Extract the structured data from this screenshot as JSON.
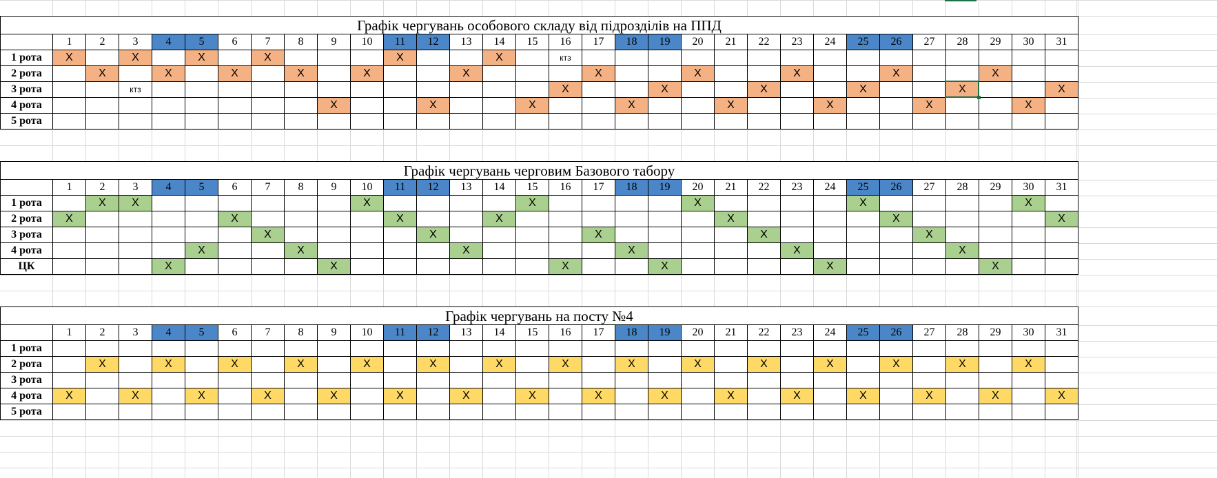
{
  "colors": {
    "weekend_header": "#4a86c8",
    "mark_ppd": "#f4b183",
    "mark_base": "#a9d08e",
    "mark_post": "#ffd966",
    "selection": "#1e7145"
  },
  "days": [
    "1",
    "2",
    "3",
    "4",
    "5",
    "6",
    "7",
    "8",
    "9",
    "10",
    "11",
    "12",
    "13",
    "14",
    "15",
    "16",
    "17",
    "18",
    "19",
    "20",
    "21",
    "22",
    "23",
    "24",
    "25",
    "26",
    "27",
    "28",
    "29",
    "30",
    "31"
  ],
  "weekend_days": [
    4,
    5,
    11,
    12,
    18,
    19,
    25,
    26
  ],
  "mark_text": "Х",
  "schedules": [
    {
      "title": "Графік чергувань особового складу від підрозділів на ППД",
      "mark_color": "#f4b183",
      "rows": [
        {
          "label": "1 рота",
          "marks": [
            1,
            3,
            5,
            7,
            11,
            14
          ],
          "notes": {
            "16": "ктз"
          }
        },
        {
          "label": "2 рота",
          "marks": [
            2,
            4,
            6,
            8,
            10,
            13,
            17,
            20,
            23,
            26,
            29
          ],
          "notes": {}
        },
        {
          "label": "3 рота",
          "marks": [
            16,
            19,
            22,
            25,
            28,
            31
          ],
          "notes": {
            "3": "ктз"
          }
        },
        {
          "label": "4 рота",
          "marks": [
            9,
            12,
            15,
            18,
            21,
            24,
            27,
            30
          ],
          "notes": {}
        },
        {
          "label": "5 рота",
          "marks": [],
          "notes": {}
        }
      ]
    },
    {
      "title": "Графік чергувань черговим Базового табору",
      "mark_color": "#a9d08e",
      "rows": [
        {
          "label": "1 рота",
          "marks": [
            2,
            3,
            10,
            15,
            20,
            25,
            30
          ],
          "notes": {}
        },
        {
          "label": "2 рота",
          "marks": [
            1,
            6,
            11,
            14,
            21,
            26,
            31
          ],
          "notes": {}
        },
        {
          "label": "3 рота",
          "marks": [
            7,
            12,
            17,
            22,
            27
          ],
          "notes": {}
        },
        {
          "label": "4 рота",
          "marks": [
            5,
            8,
            13,
            18,
            23,
            28
          ],
          "notes": {}
        },
        {
          "label": "ЦК",
          "marks": [
            4,
            9,
            16,
            19,
            24,
            29
          ],
          "notes": {}
        }
      ]
    },
    {
      "title": "Графік чергувань на посту №4",
      "mark_color": "#ffd966",
      "rows": [
        {
          "label": "1 рота",
          "marks": [],
          "notes": {}
        },
        {
          "label": "2 рота",
          "marks": [
            2,
            4,
            6,
            8,
            10,
            12,
            14,
            16,
            18,
            20,
            22,
            24,
            26,
            28,
            30
          ],
          "notes": {}
        },
        {
          "label": "3 рота",
          "marks": [],
          "notes": {}
        },
        {
          "label": "4 рота",
          "marks": [
            1,
            3,
            5,
            7,
            9,
            11,
            13,
            15,
            17,
            19,
            21,
            23,
            25,
            27,
            29,
            31
          ],
          "notes": {}
        },
        {
          "label": "5 рота",
          "marks": [],
          "notes": {}
        }
      ]
    }
  ]
}
